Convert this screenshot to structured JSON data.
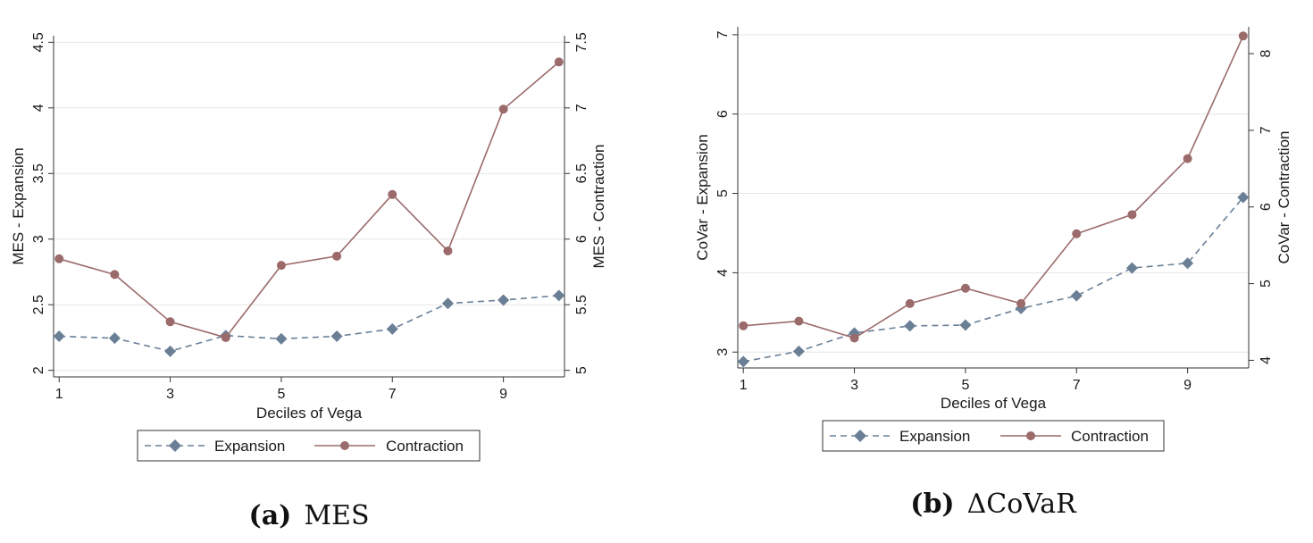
{
  "chart_data": [
    {
      "type": "line",
      "caption_label": "(a)",
      "caption_text": "MES",
      "xlabel": "Deciles of Vega",
      "ylabel_left": "MES - Expansion",
      "ylabel_right": "MES - Contraction",
      "x": [
        1,
        2,
        3,
        4,
        5,
        6,
        7,
        8,
        9,
        10
      ],
      "x_ticks": [
        1,
        3,
        5,
        7,
        9
      ],
      "xlim": [
        0.9,
        10.1
      ],
      "ylim_left": [
        1.95,
        4.55
      ],
      "ylim_right": [
        4.95,
        7.55
      ],
      "y_ticks_left": [
        2,
        2.5,
        3,
        3.5,
        4,
        4.5
      ],
      "y_ticks_right": [
        5,
        5.5,
        6,
        6.5,
        7,
        7.5
      ],
      "grid": true,
      "legend_position": "bottom",
      "series": [
        {
          "name": "Expansion",
          "axis": "left",
          "color": "#6a7f96",
          "line_style": "dashed",
          "marker": "diamond",
          "values": [
            2.26,
            2.245,
            2.145,
            2.265,
            2.24,
            2.26,
            2.315,
            2.51,
            2.535,
            2.57
          ]
        },
        {
          "name": "Contraction",
          "axis": "right",
          "color": "#9b6a6a",
          "line_style": "solid",
          "marker": "circle",
          "values": [
            5.85,
            5.73,
            5.37,
            5.25,
            5.8,
            5.87,
            6.34,
            5.91,
            6.99,
            7.35
          ]
        }
      ]
    },
    {
      "type": "line",
      "caption_label": "(b)",
      "caption_text": "ΔCoVaR",
      "xlabel": "Deciles of Vega",
      "ylabel_left": "CoVar - Expansion",
      "ylabel_right": "CoVar - Contraction",
      "x": [
        1,
        2,
        3,
        4,
        5,
        6,
        7,
        8,
        9,
        10
      ],
      "x_ticks": [
        1,
        3,
        5,
        7,
        9
      ],
      "xlim": [
        0.9,
        10.1
      ],
      "ylim_left": [
        2.8,
        7.1
      ],
      "ylim_right": [
        3.9,
        8.35
      ],
      "y_ticks_left": [
        3,
        4,
        5,
        6,
        7
      ],
      "y_ticks_right": [
        4,
        5,
        6,
        7,
        8
      ],
      "grid": true,
      "legend_position": "bottom",
      "series": [
        {
          "name": "Expansion",
          "axis": "left",
          "color": "#6a7f96",
          "line_style": "dashed",
          "marker": "diamond",
          "values": [
            2.88,
            3.01,
            3.24,
            3.33,
            3.34,
            3.55,
            3.71,
            4.06,
            4.12,
            4.95
          ]
        },
        {
          "name": "Contraction",
          "axis": "right",
          "color": "#9b6a6a",
          "line_style": "solid",
          "marker": "circle",
          "values": [
            4.45,
            4.51,
            4.29,
            4.74,
            4.94,
            4.74,
            5.65,
            5.9,
            6.63,
            8.23
          ]
        }
      ]
    }
  ]
}
